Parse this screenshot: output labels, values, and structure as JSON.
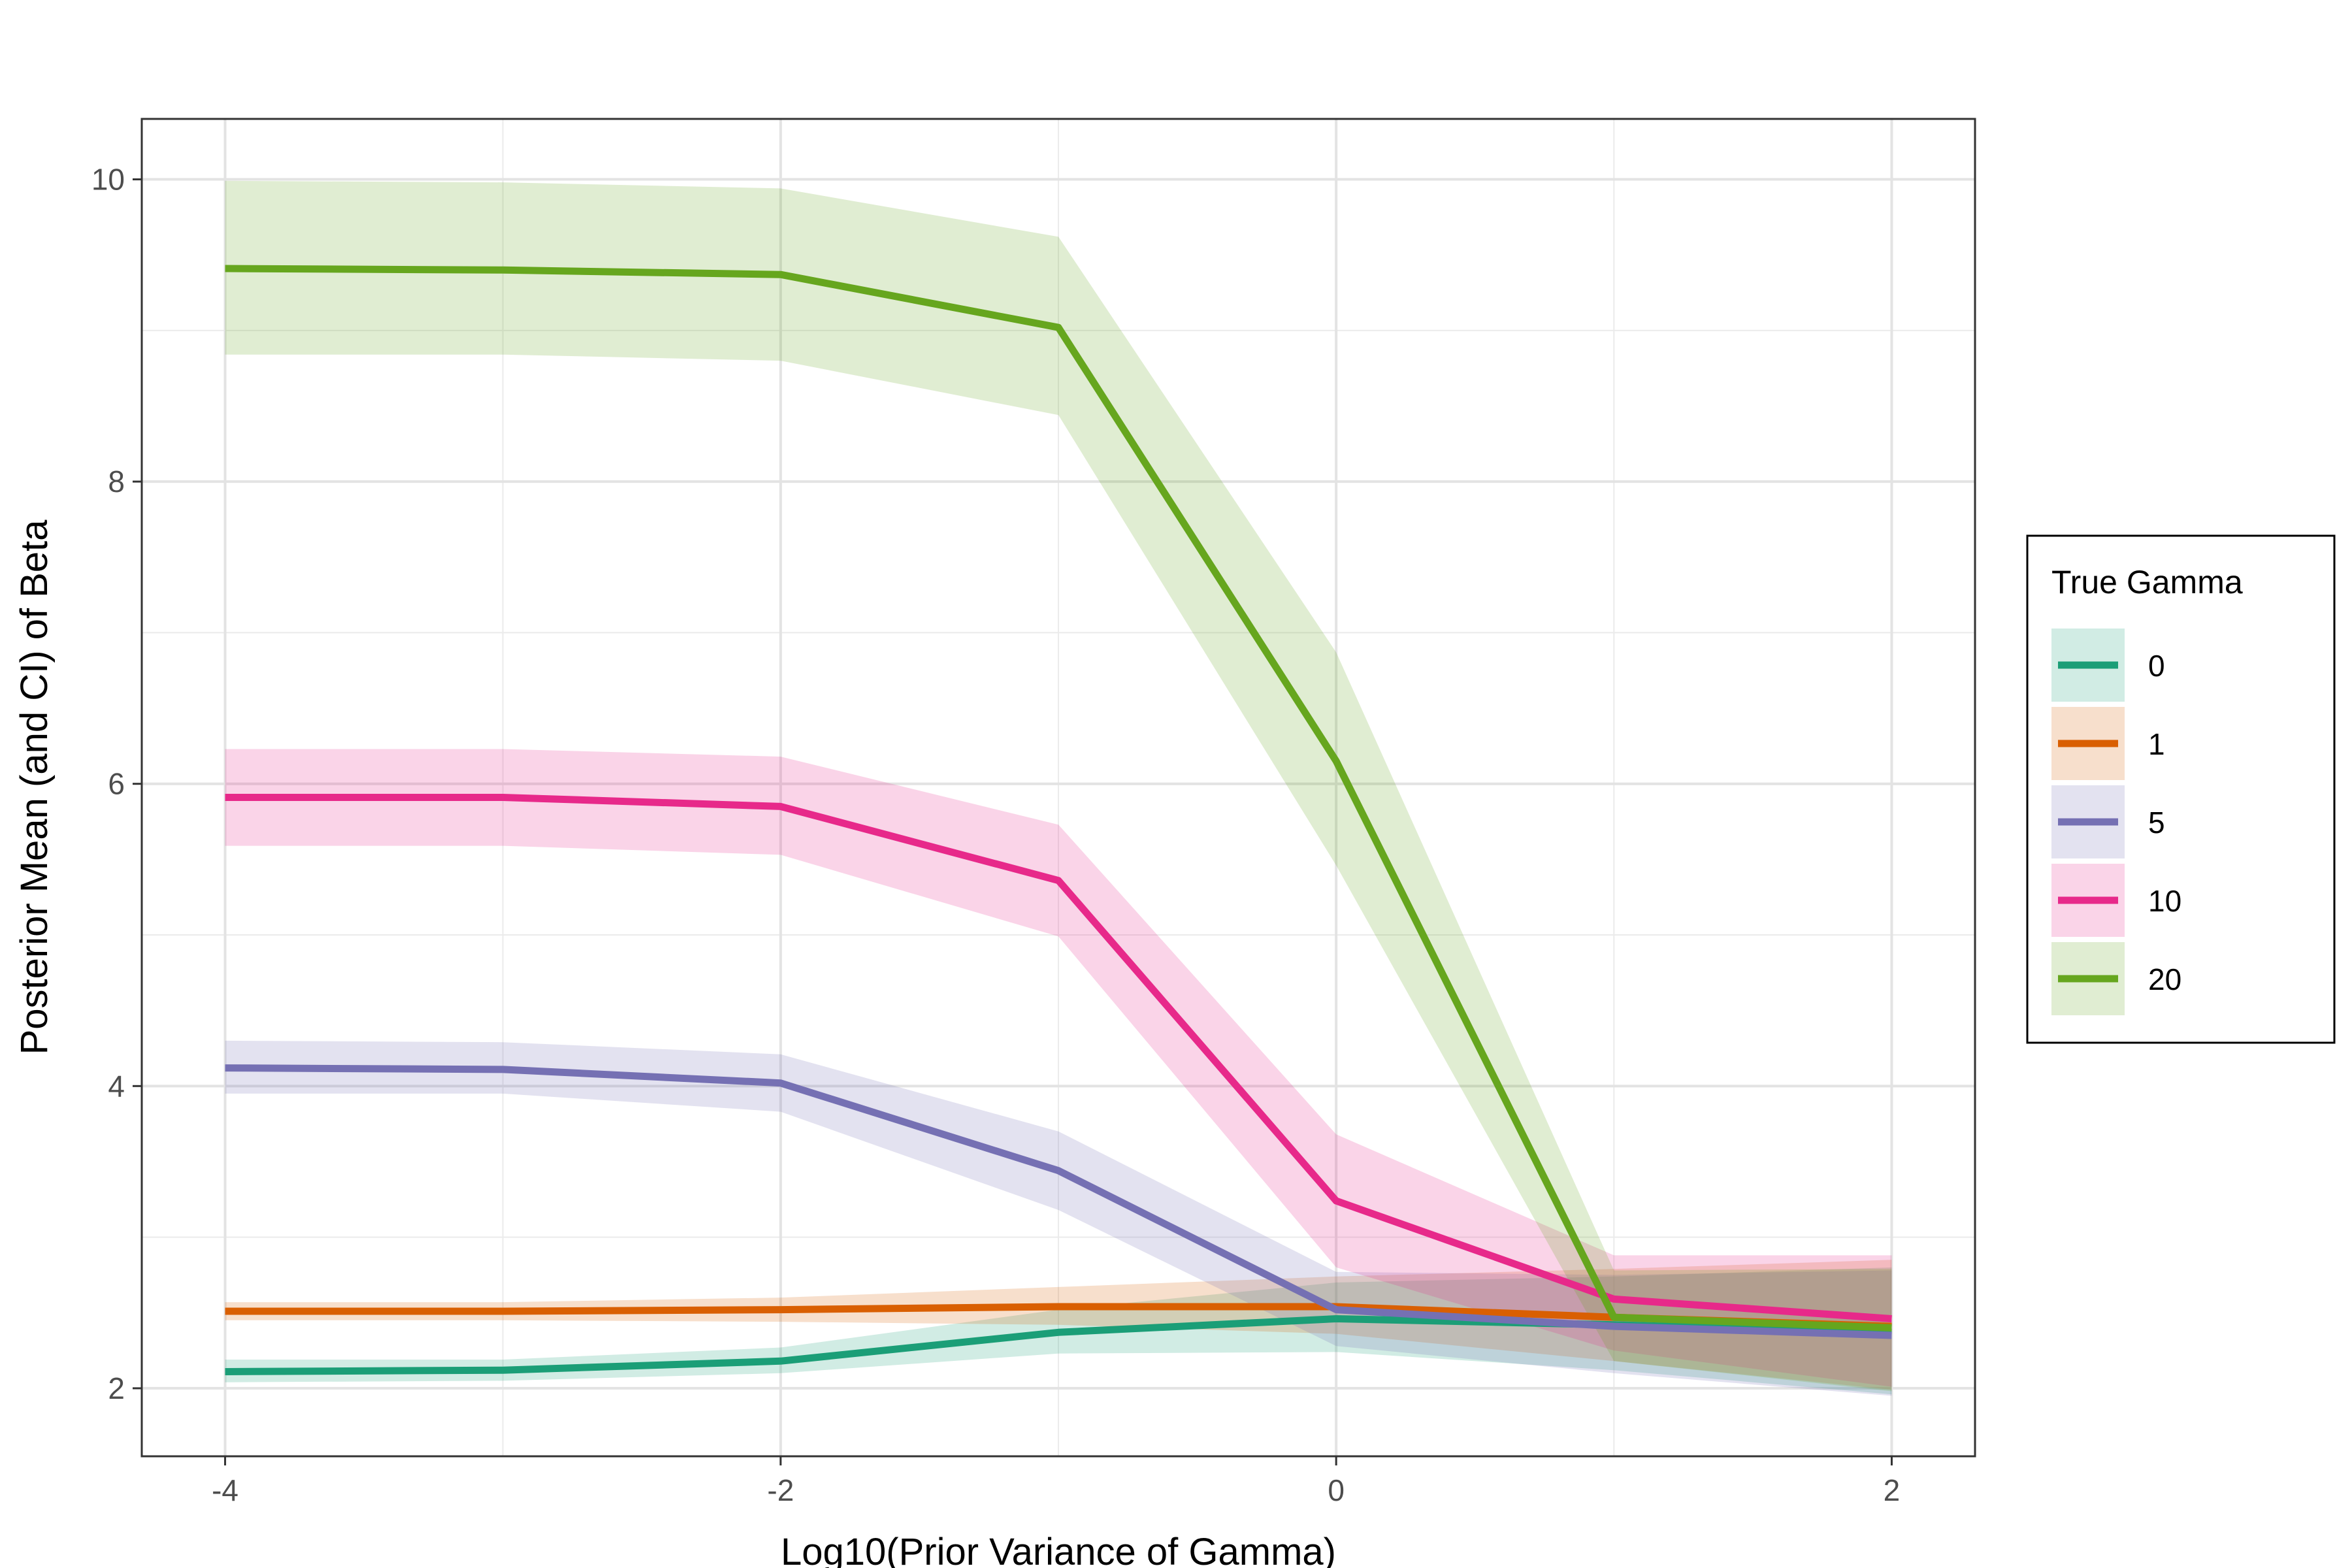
{
  "chart_data": {
    "type": "line",
    "title": "",
    "xlabel": "Log10(Prior Variance of Gamma)",
    "ylabel": "Posterior Mean (and CI) of Beta",
    "x": [
      -4,
      -3,
      -2,
      -1,
      0,
      1,
      2
    ],
    "xlim": [
      -4.3,
      2.3
    ],
    "ylim": [
      1.55,
      10.4
    ],
    "x_ticks": [
      -4,
      -2,
      0,
      2
    ],
    "y_ticks": [
      2,
      4,
      6,
      8,
      10
    ],
    "grid": true,
    "legend": {
      "title": "True Gamma",
      "placement": "right"
    },
    "series": [
      {
        "name": "0",
        "color": "#1b9e77",
        "values": [
          2.11,
          2.12,
          2.18,
          2.37,
          2.46,
          2.42,
          2.37
        ],
        "lower": [
          2.04,
          2.05,
          2.1,
          2.23,
          2.24,
          2.12,
          1.96
        ],
        "upper": [
          2.19,
          2.19,
          2.27,
          2.52,
          2.7,
          2.74,
          2.8
        ]
      },
      {
        "name": "1",
        "color": "#d95f02",
        "values": [
          2.51,
          2.51,
          2.52,
          2.54,
          2.54,
          2.47,
          2.41
        ],
        "lower": [
          2.45,
          2.45,
          2.44,
          2.42,
          2.36,
          2.18,
          1.99
        ],
        "upper": [
          2.57,
          2.57,
          2.6,
          2.67,
          2.74,
          2.79,
          2.85
        ]
      },
      {
        "name": "5",
        "color": "#7570b3",
        "values": [
          4.12,
          4.11,
          4.02,
          3.44,
          2.52,
          2.41,
          2.35
        ],
        "lower": [
          3.95,
          3.95,
          3.83,
          3.18,
          2.28,
          2.1,
          1.95
        ],
        "upper": [
          4.3,
          4.29,
          4.21,
          3.7,
          2.77,
          2.75,
          2.78
        ]
      },
      {
        "name": "10",
        "color": "#e7298a",
        "values": [
          5.91,
          5.91,
          5.85,
          5.36,
          3.24,
          2.59,
          2.46
        ],
        "lower": [
          5.59,
          5.59,
          5.53,
          4.99,
          2.8,
          2.25,
          2.01
        ],
        "upper": [
          6.23,
          6.23,
          6.18,
          5.73,
          3.68,
          2.88,
          2.88
        ]
      },
      {
        "name": "20",
        "color": "#66a61e",
        "values": [
          9.41,
          9.4,
          9.37,
          9.02,
          6.15,
          2.47,
          2.4
        ],
        "lower": [
          8.84,
          8.84,
          8.8,
          8.44,
          5.46,
          2.18,
          1.98
        ],
        "upper": [
          9.99,
          9.98,
          9.94,
          9.62,
          6.87,
          2.78,
          2.79
        ]
      }
    ]
  }
}
